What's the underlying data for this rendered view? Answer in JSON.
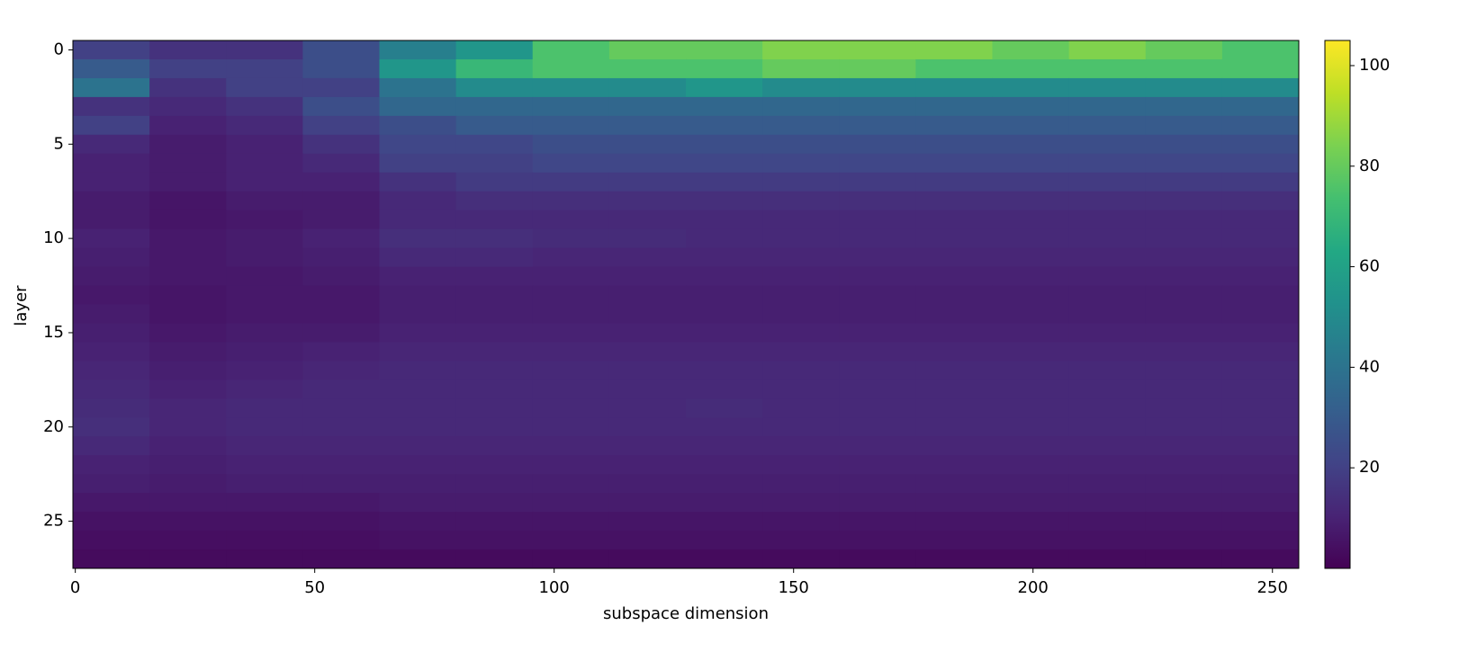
{
  "chart_data": {
    "type": "heatmap",
    "xlabel": "subspace dimension",
    "ylabel": "layer",
    "colormap": "viridis",
    "x_bins": [
      -0.5,
      15.5,
      31.5,
      47.5,
      63.5,
      79.5,
      95.5,
      111.5,
      127.5,
      143.5,
      159.5,
      175.5,
      191.5,
      207.5,
      223.5,
      239.5,
      255.5
    ],
    "y": [
      0,
      1,
      2,
      3,
      4,
      5,
      6,
      7,
      8,
      9,
      10,
      11,
      12,
      13,
      14,
      15,
      16,
      17,
      18,
      19,
      20,
      21,
      22,
      23,
      24,
      25,
      26,
      27
    ],
    "xlim": [
      -0.5,
      255.5
    ],
    "ylim": [
      27.5,
      -0.5
    ],
    "xticks": [
      0,
      50,
      100,
      150,
      200,
      250
    ],
    "yticks": [
      0,
      5,
      10,
      15,
      20,
      25
    ],
    "clim": [
      0,
      105
    ],
    "cticks": [
      20,
      40,
      60,
      80,
      100
    ],
    "values": [
      [
        20,
        15,
        15,
        25,
        45,
        55,
        75,
        80,
        80,
        85,
        85,
        85,
        80,
        85,
        80,
        75
      ],
      [
        30,
        20,
        20,
        25,
        55,
        70,
        75,
        75,
        75,
        80,
        80,
        75,
        75,
        75,
        75,
        75
      ],
      [
        40,
        15,
        20,
        20,
        40,
        50,
        50,
        50,
        55,
        50,
        50,
        50,
        50,
        50,
        50,
        50
      ],
      [
        15,
        12,
        15,
        25,
        35,
        35,
        35,
        35,
        35,
        35,
        35,
        35,
        35,
        35,
        35,
        35
      ],
      [
        20,
        10,
        12,
        20,
        25,
        30,
        30,
        30,
        30,
        30,
        30,
        30,
        30,
        30,
        30,
        30
      ],
      [
        12,
        8,
        10,
        15,
        22,
        22,
        25,
        25,
        25,
        25,
        25,
        25,
        25,
        25,
        25,
        25
      ],
      [
        10,
        8,
        10,
        12,
        20,
        20,
        22,
        22,
        22,
        22,
        22,
        22,
        22,
        22,
        22,
        22
      ],
      [
        10,
        8,
        10,
        10,
        15,
        18,
        18,
        18,
        18,
        18,
        18,
        18,
        18,
        18,
        18,
        18
      ],
      [
        8,
        6,
        8,
        8,
        12,
        14,
        14,
        14,
        14,
        14,
        14,
        14,
        14,
        14,
        14,
        14
      ],
      [
        8,
        6,
        7,
        8,
        12,
        12,
        12,
        12,
        12,
        12,
        12,
        12,
        12,
        12,
        12,
        12
      ],
      [
        10,
        7,
        8,
        10,
        14,
        14,
        13,
        13,
        12,
        12,
        12,
        12,
        12,
        12,
        12,
        12
      ],
      [
        9,
        7,
        8,
        9,
        12,
        12,
        11,
        11,
        11,
        11,
        11,
        11,
        11,
        11,
        11,
        11
      ],
      [
        8,
        7,
        7,
        8,
        10,
        10,
        10,
        10,
        10,
        10,
        10,
        10,
        10,
        10,
        10,
        10
      ],
      [
        7,
        6,
        7,
        7,
        9,
        9,
        9,
        9,
        9,
        9,
        9,
        9,
        9,
        9,
        9,
        9
      ],
      [
        8,
        6,
        7,
        7,
        9,
        9,
        9,
        9,
        9,
        9,
        9,
        9,
        9,
        9,
        9,
        9
      ],
      [
        9,
        7,
        8,
        8,
        10,
        10,
        10,
        10,
        10,
        10,
        10,
        10,
        10,
        10,
        10,
        10
      ],
      [
        10,
        8,
        9,
        10,
        11,
        11,
        11,
        11,
        11,
        11,
        11,
        11,
        11,
        11,
        11,
        11
      ],
      [
        11,
        9,
        10,
        11,
        12,
        12,
        12,
        12,
        12,
        12,
        12,
        12,
        12,
        12,
        12,
        12
      ],
      [
        12,
        10,
        11,
        12,
        12,
        12,
        12,
        12,
        12,
        12,
        12,
        12,
        12,
        12,
        12,
        12
      ],
      [
        13,
        11,
        12,
        12,
        12,
        12,
        12,
        12,
        13,
        12,
        12,
        12,
        12,
        12,
        12,
        12
      ],
      [
        14,
        11,
        12,
        12,
        12,
        12,
        12,
        12,
        12,
        12,
        12,
        12,
        12,
        12,
        12,
        12
      ],
      [
        12,
        10,
        11,
        11,
        11,
        11,
        11,
        11,
        11,
        11,
        11,
        11,
        11,
        11,
        11,
        11
      ],
      [
        10,
        9,
        10,
        10,
        10,
        10,
        10,
        10,
        10,
        10,
        10,
        10,
        10,
        10,
        10,
        10
      ],
      [
        9,
        8,
        9,
        9,
        9,
        9,
        9,
        9,
        9,
        9,
        9,
        9,
        9,
        9,
        9,
        9
      ],
      [
        7,
        7,
        7,
        7,
        8,
        8,
        8,
        8,
        8,
        8,
        8,
        8,
        8,
        8,
        8,
        8
      ],
      [
        5,
        5,
        5,
        5,
        6,
        6,
        6,
        6,
        6,
        6,
        6,
        6,
        6,
        6,
        6,
        6
      ],
      [
        4,
        4,
        4,
        4,
        5,
        5,
        5,
        5,
        5,
        5,
        5,
        5,
        5,
        5,
        5,
        5
      ],
      [
        3,
        3,
        3,
        3,
        3,
        3,
        3,
        3,
        3,
        3,
        3,
        3,
        3,
        3,
        3,
        3
      ]
    ]
  }
}
